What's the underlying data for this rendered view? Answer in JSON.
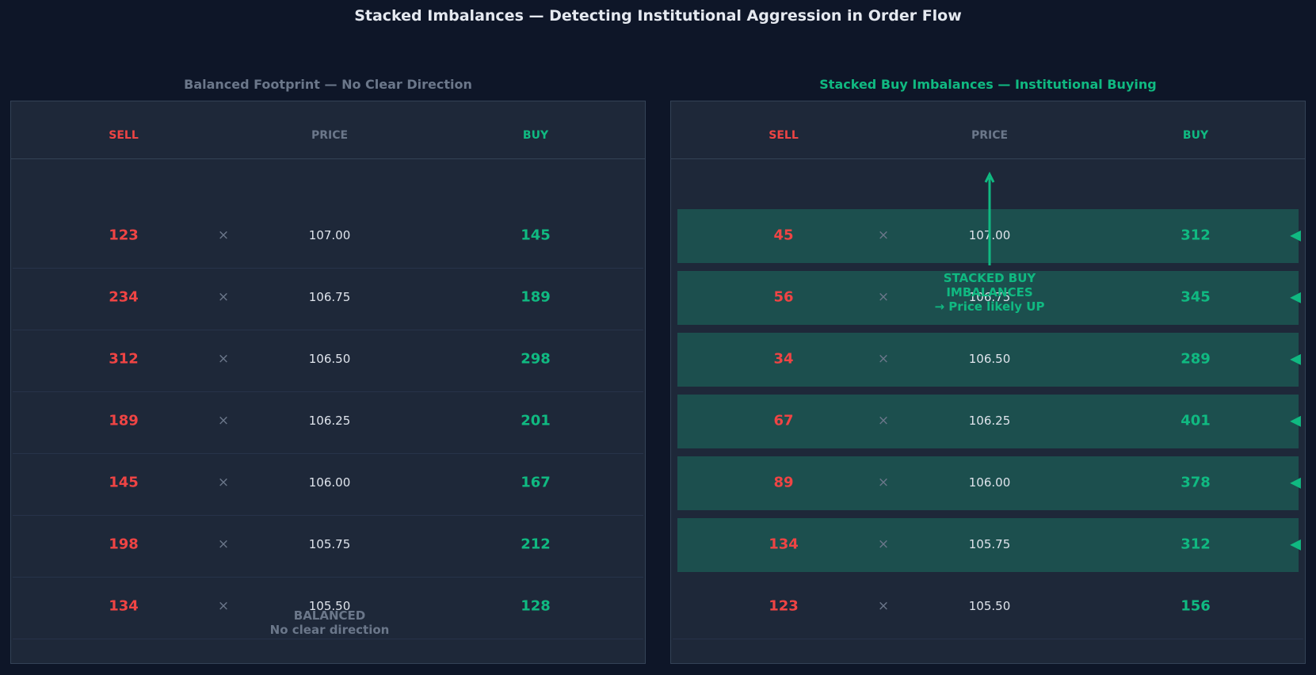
{
  "title": "Stacked Imbalances — Detecting Institutional Aggression in Order Flow",
  "colors": {
    "sell": "#ef4444",
    "buy": "#10b981",
    "muted": "#6b778a",
    "highlight": "#1c4f4e"
  },
  "chart_data": [
    {
      "type": "table",
      "title": "Balanced Footprint — No Clear Direction",
      "columns": [
        "SELL",
        "PRICE",
        "BUY"
      ],
      "separator": "×",
      "rows": [
        {
          "sell": "123",
          "price": "107.00",
          "buy": "145"
        },
        {
          "sell": "234",
          "price": "106.75",
          "buy": "189"
        },
        {
          "sell": "312",
          "price": "106.50",
          "buy": "298"
        },
        {
          "sell": "189",
          "price": "106.25",
          "buy": "201"
        },
        {
          "sell": "145",
          "price": "106.00",
          "buy": "167"
        },
        {
          "sell": "198",
          "price": "105.75",
          "buy": "212"
        },
        {
          "sell": "134",
          "price": "105.50",
          "buy": "128"
        }
      ],
      "annotation": "BALANCED\nNo clear direction"
    },
    {
      "type": "table",
      "title": "Stacked Buy Imbalances — Institutional Buying",
      "columns": [
        "SELL",
        "PRICE",
        "BUY"
      ],
      "separator": "×",
      "imbalance_marker": "◀",
      "rows": [
        {
          "sell": "45",
          "price": "107.00",
          "buy": "312",
          "imbalance": true
        },
        {
          "sell": "56",
          "price": "106.75",
          "buy": "345",
          "imbalance": true
        },
        {
          "sell": "34",
          "price": "106.50",
          "buy": "289",
          "imbalance": true
        },
        {
          "sell": "67",
          "price": "106.25",
          "buy": "401",
          "imbalance": true
        },
        {
          "sell": "89",
          "price": "106.00",
          "buy": "378",
          "imbalance": true
        },
        {
          "sell": "134",
          "price": "105.75",
          "buy": "312",
          "imbalance": true
        },
        {
          "sell": "123",
          "price": "105.50",
          "buy": "156",
          "imbalance": false
        }
      ],
      "annotation": "STACKED BUY\nIMBALANCES\n→ Price likely UP"
    }
  ]
}
